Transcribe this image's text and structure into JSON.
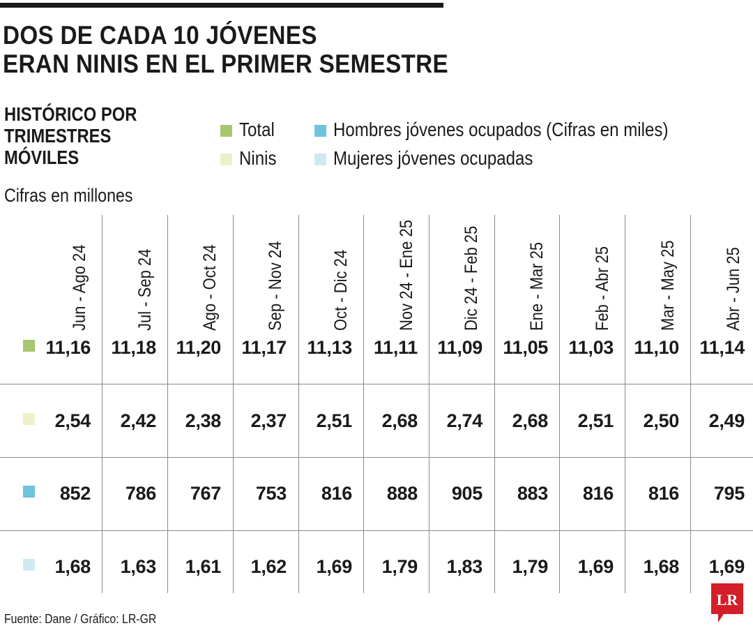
{
  "title": [
    "DOS DE CADA 10 JÓVENES",
    "ERAN NINIS EN EL PRIMER SEMESTRE"
  ],
  "subtitle": [
    "HISTÓRICO POR",
    "TRIMESTRES",
    "MÓVILES"
  ],
  "unit_note": "Cifras en millones",
  "colors": {
    "total": "#a6c66f",
    "ninis": "#eef0c9",
    "hombres": "#6ec3dd",
    "mujeres": "#cfe9f3",
    "rule": "#1a1a1a",
    "logo": "#d21f2a"
  },
  "legend": [
    {
      "label": "Total",
      "color": "#a6c66f"
    },
    {
      "label": "Ninis",
      "color": "#eef0c9"
    },
    {
      "label": "Hombres jóvenes ocupados (Cifras en miles)",
      "color": "#6ec3dd"
    },
    {
      "label": "Mujeres jóvenes ocupadas",
      "color": "#cfe9f3"
    }
  ],
  "chart_data": {
    "type": "table",
    "title": "DOS DE CADA 10 JÓVENES ERAN NINIS EN EL PRIMER SEMESTRE",
    "subtitle": "HISTÓRICO POR TRIMESTRES MÓVILES",
    "categories": [
      "Jun - Ago 24",
      "Jul - Sep 24",
      "Ago - Oct 24",
      "Sep - Nov 24",
      "Oct - Dic 24",
      "Nov 24 - Ene 25",
      "Dic 24 - Feb 25",
      "Ene - Mar 25",
      "Feb - Abr 25",
      "Mar - May 25",
      "Abr - Jun 25"
    ],
    "series": [
      {
        "name": "Total",
        "color": "#a6c66f",
        "values": [
          "11,16",
          "11,18",
          "11,20",
          "11,17",
          "11,13",
          "11,11",
          "11,09",
          "11,05",
          "11,03",
          "11,10",
          "11,14"
        ]
      },
      {
        "name": "Ninis",
        "color": "#eef0c9",
        "values": [
          "2,54",
          "2,42",
          "2,38",
          "2,37",
          "2,51",
          "2,68",
          "2,74",
          "2,68",
          "2,51",
          "2,50",
          "2,49"
        ]
      },
      {
        "name": "Hombres jóvenes ocupados (Cifras en miles)",
        "color": "#6ec3dd",
        "values": [
          "852",
          "786",
          "767",
          "753",
          "816",
          "888",
          "905",
          "883",
          "816",
          "816",
          "795"
        ]
      },
      {
        "name": "Mujeres jóvenes ocupadas",
        "color": "#cfe9f3",
        "values": [
          "1,68",
          "1,63",
          "1,61",
          "1,62",
          "1,69",
          "1,79",
          "1,83",
          "1,79",
          "1,69",
          "1,68",
          "1,69"
        ]
      }
    ]
  },
  "footer": "Fuente: Dane / Gráfico: LR-GR",
  "logo": {
    "text": "LR",
    "icon": "lr-logo-icon"
  }
}
